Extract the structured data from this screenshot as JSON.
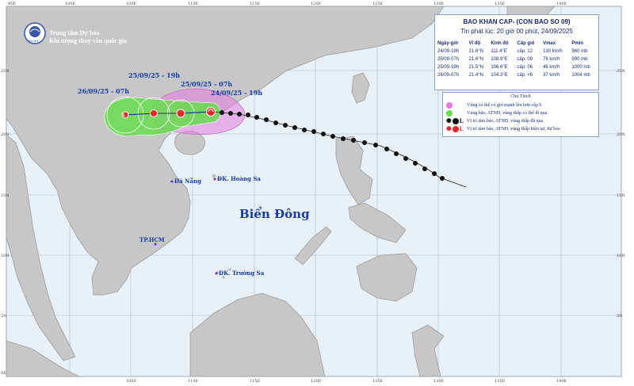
{
  "agency": {
    "line1": "Trung tâm Dự báo",
    "line2": "Khí tượng thuỷ văn quốc gia",
    "logo_text": "NCHMF"
  },
  "grid": {
    "top_labels": [
      "95E",
      "100E",
      "105E",
      "110E",
      "115E",
      "120E",
      "125E",
      "130E",
      "135E",
      "140E"
    ],
    "bottom_labels": [
      "105E",
      "110E",
      "115E",
      "120E",
      "125E",
      "130E",
      "135E",
      "140E"
    ],
    "left_labels": [
      "25N",
      "20N",
      "15N",
      "10N",
      "5N",
      "0E"
    ],
    "right_labels": [
      "25N",
      "20N",
      "15N",
      "10N",
      "5N"
    ]
  },
  "places": {
    "sea": "Biển Đông",
    "da_nang": "Đà Nẵng",
    "hoang_sa": "ĐK. Hoàng Sa",
    "hcm": "TP.HCM",
    "truong_sa": "ĐK. Trường Sa"
  },
  "track_labels": {
    "d24_19h": "24/09/25 - 19h",
    "d25_07h": "25/09/25 - 07h",
    "d25_19h": "25/09/25 - 19h",
    "d26_07h": "26/09/25 - 07h"
  },
  "forecast": {
    "title": "BAO KHAN CAP- (CON BAO SO 09)",
    "issued": "Tin phát lúc: 20 giờ 00 phút, 24/09/2025",
    "headers": [
      "Ngày-giờ",
      "Vĩ độ",
      "Kinh độ",
      "Cấp gió",
      "Vmax",
      "Pmin"
    ],
    "rows": [
      [
        "24/09-19h",
        "21.6°N",
        "111.4°E",
        "cấp: 12",
        "130 km/h",
        "960 mb"
      ],
      [
        "25/09-07h",
        "21.6°N",
        "108.9°E",
        "cấp: 09",
        "76 km/h",
        "990 mb"
      ],
      [
        "25/09-19h",
        "21.5°N",
        "106.6°E",
        "cấp: 06",
        "46 km/h",
        "1000 mb"
      ],
      [
        "26/09-07h",
        "21.4°N",
        "104.3°E",
        "cấp: <6",
        "37 km/h",
        "1004 mb"
      ]
    ]
  },
  "legend": {
    "title": "Chú Thích",
    "items": [
      {
        "text": "Vùng có thể có gió mạnh lên hơn cấp 6",
        "color": "#e27be0"
      },
      {
        "text": "Vùng bão, ATNĐ, vùng thấp có thể đi qua",
        "color": "#66dd4c"
      },
      {
        "text": "Vị trí tâm bão, ATNĐ, vùng thấp đã qua",
        "color": "#111111"
      },
      {
        "text": "Vị trí tâm bão, ATNĐ, vùng thấp hiện tại, dự báo",
        "color": "#e8262b"
      }
    ]
  },
  "colors": {
    "sea": "#e8f1f8",
    "land": "#c7c7c7",
    "accent_red": "#e8262b",
    "cone_green": "#66dd4c",
    "wind_pink": "#e27be0",
    "label_blue": "#1a3aa6"
  }
}
